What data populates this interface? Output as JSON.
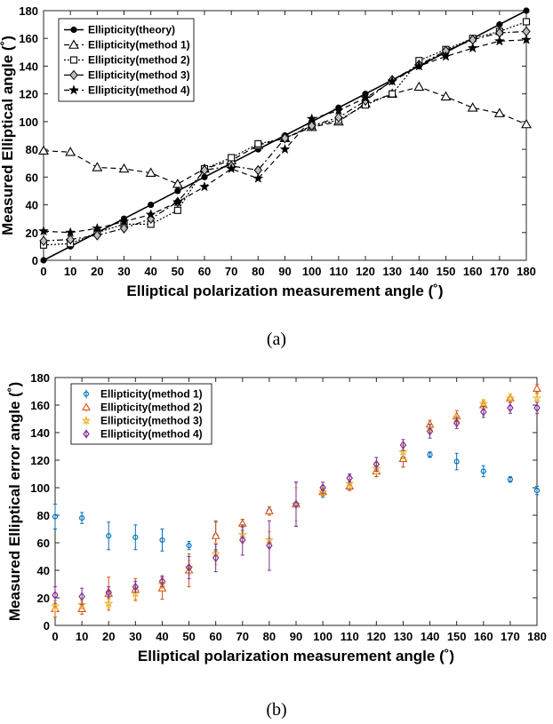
{
  "chart_data": [
    {
      "type": "line",
      "panel_label": "(a)",
      "xlabel": "Elliptical polarization measurement angle (˚)",
      "ylabel": "Measured Elliptical angle (˚)",
      "xlim": [
        0,
        180
      ],
      "ylim": [
        0,
        180
      ],
      "xticks": [
        0,
        10,
        20,
        30,
        40,
        50,
        60,
        70,
        80,
        90,
        100,
        110,
        120,
        130,
        140,
        150,
        160,
        170,
        180
      ],
      "yticks": [
        0,
        20,
        40,
        60,
        80,
        100,
        120,
        140,
        160,
        180
      ],
      "grid": false,
      "legend_position": "top-left",
      "x": [
        0,
        10,
        20,
        30,
        40,
        50,
        60,
        70,
        80,
        90,
        100,
        110,
        120,
        130,
        140,
        150,
        160,
        170,
        180
      ],
      "series": [
        {
          "name": "Ellipticity(theory)",
          "marker": "filled-circle",
          "line": "solid",
          "color": "#000000",
          "values": [
            0,
            10,
            20,
            30,
            40,
            50,
            60,
            70,
            80,
            90,
            100,
            110,
            120,
            130,
            140,
            150,
            160,
            170,
            180
          ]
        },
        {
          "name": "Ellipticity(method 1)",
          "marker": "open-triangle",
          "line": "dashed",
          "color": "#000000",
          "values": [
            79,
            78,
            67,
            66,
            63,
            55,
            66,
            72,
            83,
            88,
            96,
            100,
            113,
            120,
            125,
            118,
            110,
            106,
            98
          ]
        },
        {
          "name": "Ellipticity(method 2)",
          "marker": "open-square",
          "line": "dotted",
          "color": "#000000",
          "values": [
            11,
            12,
            20,
            26,
            26,
            36,
            66,
            74,
            84,
            88,
            97,
            101,
            112,
            120,
            144,
            152,
            160,
            165,
            172
          ]
        },
        {
          "name": "Ellipticity(method 3)",
          "marker": "gray-diamond",
          "line": "dashdot",
          "color": "#000000",
          "values": [
            14,
            15,
            18,
            23,
            30,
            42,
            65,
            68,
            65,
            88,
            97,
            103,
            115,
            130,
            141,
            151,
            159,
            164,
            165
          ]
        },
        {
          "name": "Ellipticity(method 4)",
          "marker": "filled-star",
          "line": "dashed",
          "color": "#000000",
          "values": [
            21,
            20,
            23,
            28,
            33,
            42,
            53,
            66,
            59,
            80,
            102,
            108,
            117,
            129,
            140,
            147,
            153,
            158,
            159
          ]
        }
      ]
    },
    {
      "type": "scatter",
      "panel_label": "(b)",
      "xlabel": "Elliptical polarization measurement angle (˚)",
      "ylabel": "Measured Elliptical error angle (˚)",
      "xlim": [
        0,
        180
      ],
      "ylim": [
        0,
        180
      ],
      "xticks": [
        0,
        10,
        20,
        30,
        40,
        50,
        60,
        70,
        80,
        90,
        100,
        110,
        120,
        130,
        140,
        150,
        160,
        170,
        180
      ],
      "yticks": [
        0,
        20,
        40,
        60,
        80,
        100,
        120,
        140,
        160,
        180
      ],
      "grid": false,
      "legend_position": "top-left",
      "error_bars": true,
      "x": [
        0,
        10,
        20,
        30,
        40,
        50,
        60,
        70,
        80,
        90,
        100,
        110,
        120,
        130,
        140,
        150,
        160,
        170,
        180
      ],
      "series": [
        {
          "name": "Ellipticity(method 1)",
          "marker": "open-circle",
          "color": "#0072BD",
          "values": [
            79,
            78,
            65,
            64,
            62,
            58,
            65,
            73,
            83,
            88,
            96,
            101,
            112,
            121,
            124,
            119,
            112,
            106,
            98
          ],
          "errors": [
            9,
            4,
            10,
            9,
            8,
            3,
            10,
            4,
            3,
            16,
            3,
            3,
            4,
            6,
            2,
            6,
            4,
            2,
            3
          ]
        },
        {
          "name": "Ellipticity(method 2)",
          "marker": "open-triangle",
          "color": "#D95319",
          "values": [
            12,
            12,
            23,
            26,
            27,
            40,
            65,
            74,
            83,
            88,
            97,
            101,
            112,
            121,
            146,
            152,
            160,
            165,
            172
          ],
          "errors": [
            6,
            4,
            12,
            8,
            8,
            12,
            11,
            3,
            3,
            16,
            3,
            3,
            4,
            6,
            3,
            4,
            3,
            3,
            3
          ]
        },
        {
          "name": "Ellipticity(method 3)",
          "marker": "open-star",
          "color": "#EDB120",
          "values": [
            14,
            15,
            16,
            23,
            30,
            42,
            52,
            66,
            62,
            88,
            97,
            103,
            114,
            126,
            143,
            150,
            161,
            165,
            165
          ],
          "errors": [
            4,
            3,
            3,
            4,
            3,
            5,
            8,
            5,
            6,
            12,
            3,
            3,
            4,
            5,
            3,
            3,
            3,
            3,
            3
          ]
        },
        {
          "name": "Ellipticity(method 4)",
          "marker": "open-diamond",
          "color": "#7E2F8E",
          "values": [
            22,
            21,
            24,
            28,
            32,
            42,
            49,
            62,
            58,
            88,
            100,
            107,
            117,
            131,
            141,
            147,
            155,
            158,
            158
          ],
          "errors": [
            6,
            6,
            4,
            4,
            4,
            8,
            10,
            11,
            18,
            16,
            4,
            3,
            5,
            4,
            5,
            4,
            4,
            4,
            4
          ]
        }
      ]
    }
  ]
}
